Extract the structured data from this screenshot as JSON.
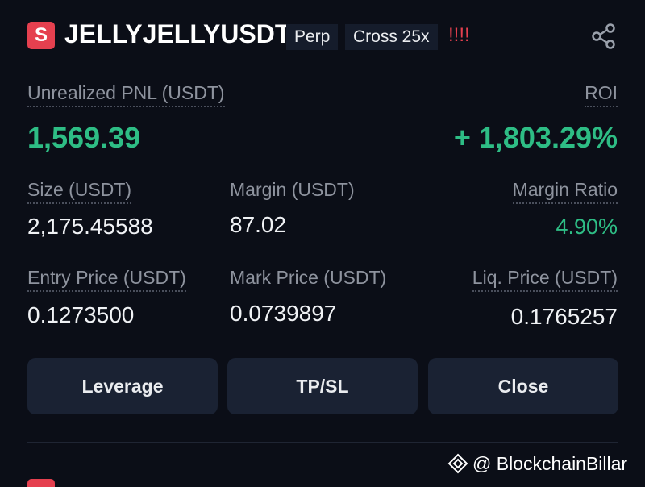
{
  "header": {
    "icon": "S",
    "symbol": "JELLYJELLYUSDT",
    "tags": [
      "Perp",
      "Cross 25x"
    ],
    "warning": "!!!!"
  },
  "pnl": {
    "label": "Unrealized PNL (USDT)",
    "value": "1,569.39"
  },
  "roi": {
    "label": "ROI",
    "value": "+ 1,803.29%"
  },
  "stats": [
    [
      {
        "label": "Size (USDT)",
        "value": "2,175.45588"
      },
      {
        "label": "Margin (USDT)",
        "value": "87.02"
      },
      {
        "label": "Margin Ratio",
        "value": "4.90%"
      }
    ],
    [
      {
        "label": "Entry Price (USDT)",
        "value": "0.1273500"
      },
      {
        "label": "Mark Price (USDT)",
        "value": "0.0739897"
      },
      {
        "label": "Liq. Price (USDT)",
        "value": "0.1765257"
      }
    ]
  ],
  "buttons": [
    "Leverage",
    "TP/SL",
    "Close"
  ],
  "watermark": "@ BlockchainBillar"
}
